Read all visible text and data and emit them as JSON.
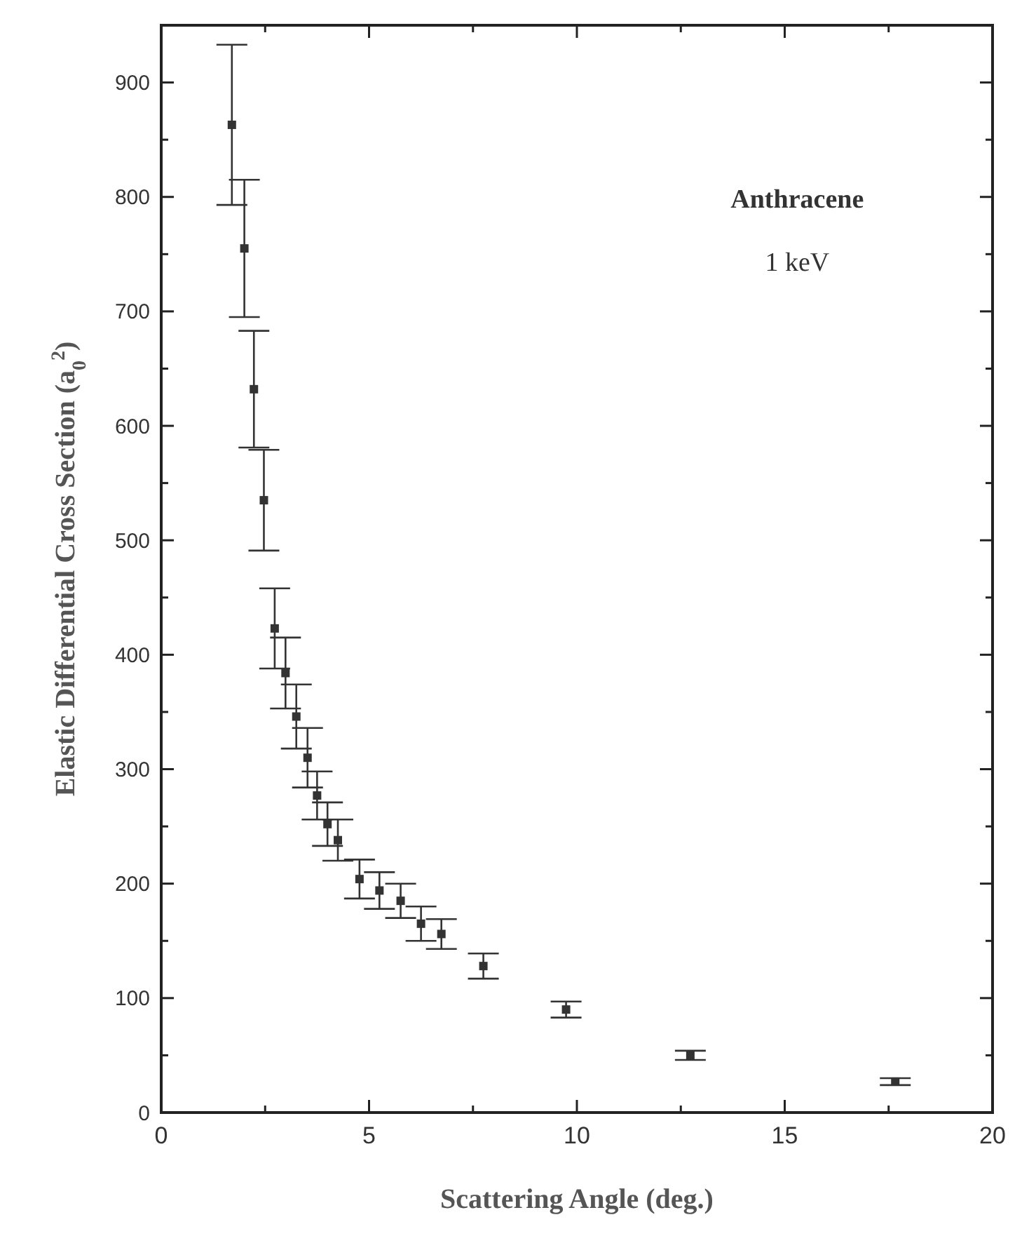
{
  "chart_data": {
    "type": "scatter",
    "xlabel": "Scattering Angle (deg.)",
    "ylabel": "Elastic Differential Cross Section (a$_{0}$$^{2}$)",
    "annotations": [
      "Anthracene",
      "1 keV"
    ],
    "x": [
      1.7,
      2.0,
      2.23,
      2.47,
      2.73,
      2.99,
      3.25,
      3.52,
      3.75,
      4.0,
      4.25,
      4.77,
      5.25,
      5.76,
      6.25,
      6.74,
      7.75,
      9.74,
      12.73,
      17.66
    ],
    "series": [
      {
        "color": "#333333",
        "values": [
          863,
          755,
          632,
          535,
          423,
          384,
          346,
          310,
          277,
          252,
          238,
          204,
          194,
          185,
          165,
          156,
          128,
          90,
          50,
          27
        ],
        "errors": [
          70,
          60,
          51,
          44,
          35,
          31,
          28,
          26,
          21,
          19,
          18,
          17,
          16,
          15,
          15,
          13,
          11,
          7,
          4,
          3
        ]
      }
    ],
    "xlim": [
      0,
      20
    ],
    "xticks": [
      0,
      {
        "value": 2.5,
        "label": null
      },
      5,
      {
        "value": 7.5,
        "label": null
      },
      10,
      {
        "value": 12.5,
        "label": null
      },
      15,
      {
        "value": 17.5,
        "label": null
      },
      20
    ],
    "ylim": [
      0,
      950
    ],
    "yticks": [
      0,
      {
        "value": 50,
        "label": null
      },
      100,
      {
        "value": 150,
        "label": null
      },
      200,
      {
        "value": 250,
        "label": null
      },
      300,
      {
        "value": 350,
        "label": null
      },
      400,
      {
        "value": 450,
        "label": null
      },
      500,
      {
        "value": 550,
        "label": null
      },
      600,
      {
        "value": 650,
        "label": null
      },
      700,
      {
        "value": 750,
        "label": null
      },
      800,
      {
        "value": 850,
        "label": null
      },
      900
    ],
    "marker": "square"
  }
}
